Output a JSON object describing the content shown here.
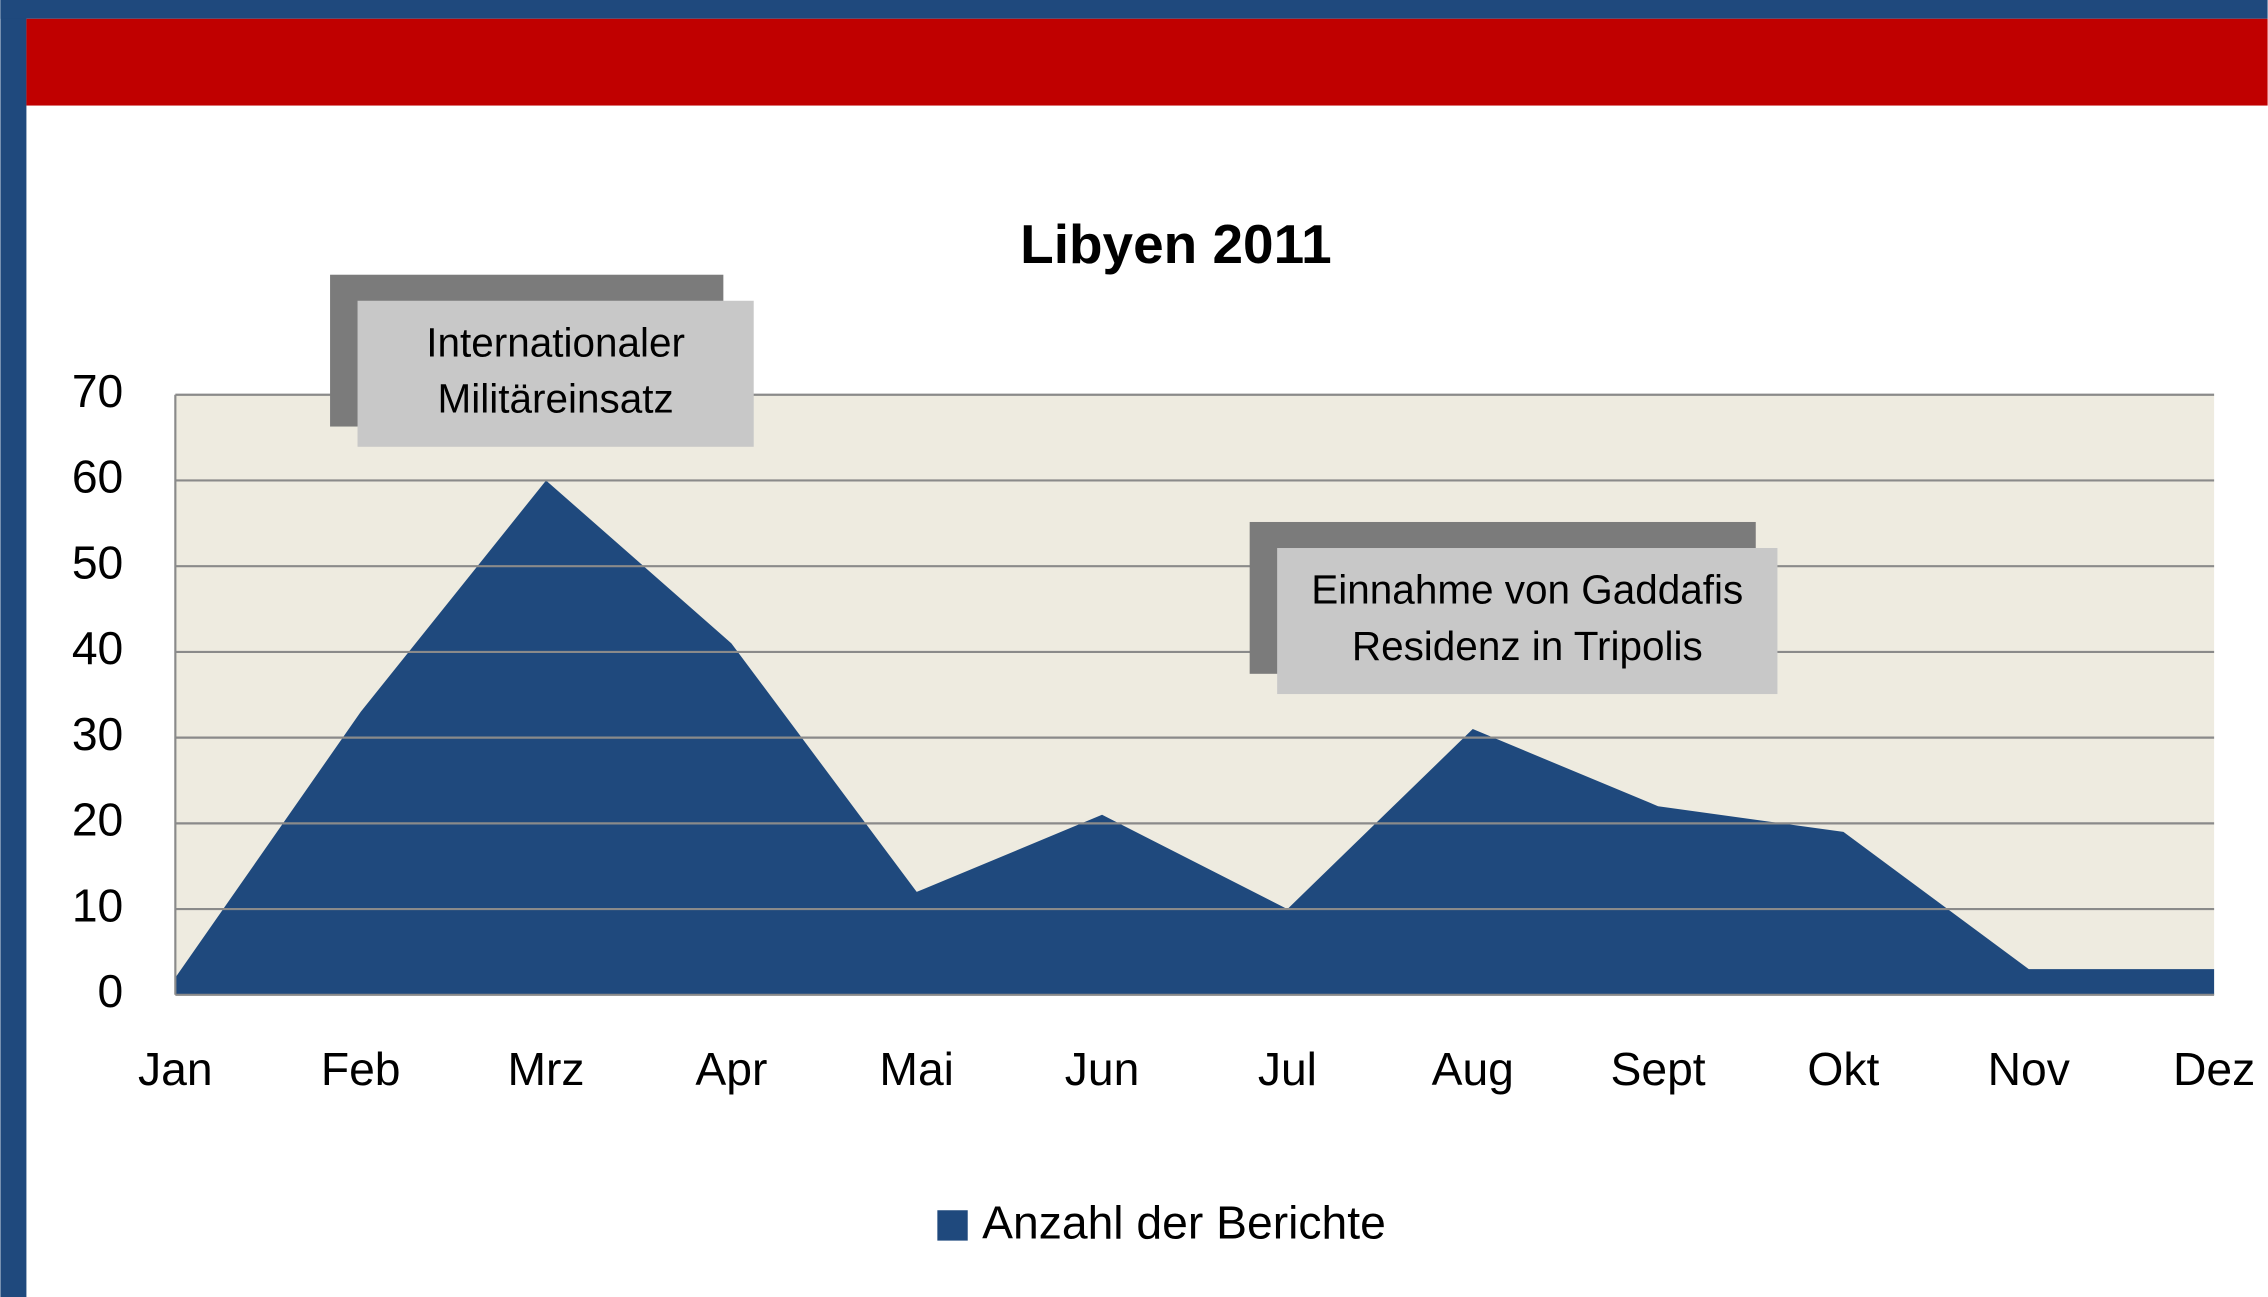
{
  "chart_data": {
    "type": "area",
    "title": "Libyen 2011",
    "categories": [
      "Jan",
      "Feb",
      "Mrz",
      "Apr",
      "Mai",
      "Jun",
      "Jul",
      "Aug",
      "Sept",
      "Okt",
      "Nov",
      "Dez"
    ],
    "series": [
      {
        "name": "Anzahl der Berichte",
        "color": "#1f497d",
        "values": [
          2,
          33,
          60,
          41,
          12,
          21,
          10,
          31,
          22,
          19,
          3,
          3
        ]
      }
    ],
    "ylim": [
      0,
      70
    ],
    "yticks": [
      0,
      10,
      20,
      30,
      40,
      50,
      60,
      70
    ],
    "grid": true,
    "legend": "bottom",
    "annotations": [
      {
        "lines": [
          "Internationaler",
          "Militäreinsatz"
        ]
      },
      {
        "lines": [
          "Einnahme von Gaddafis",
          "Residenz in Tripolis"
        ]
      }
    ]
  }
}
